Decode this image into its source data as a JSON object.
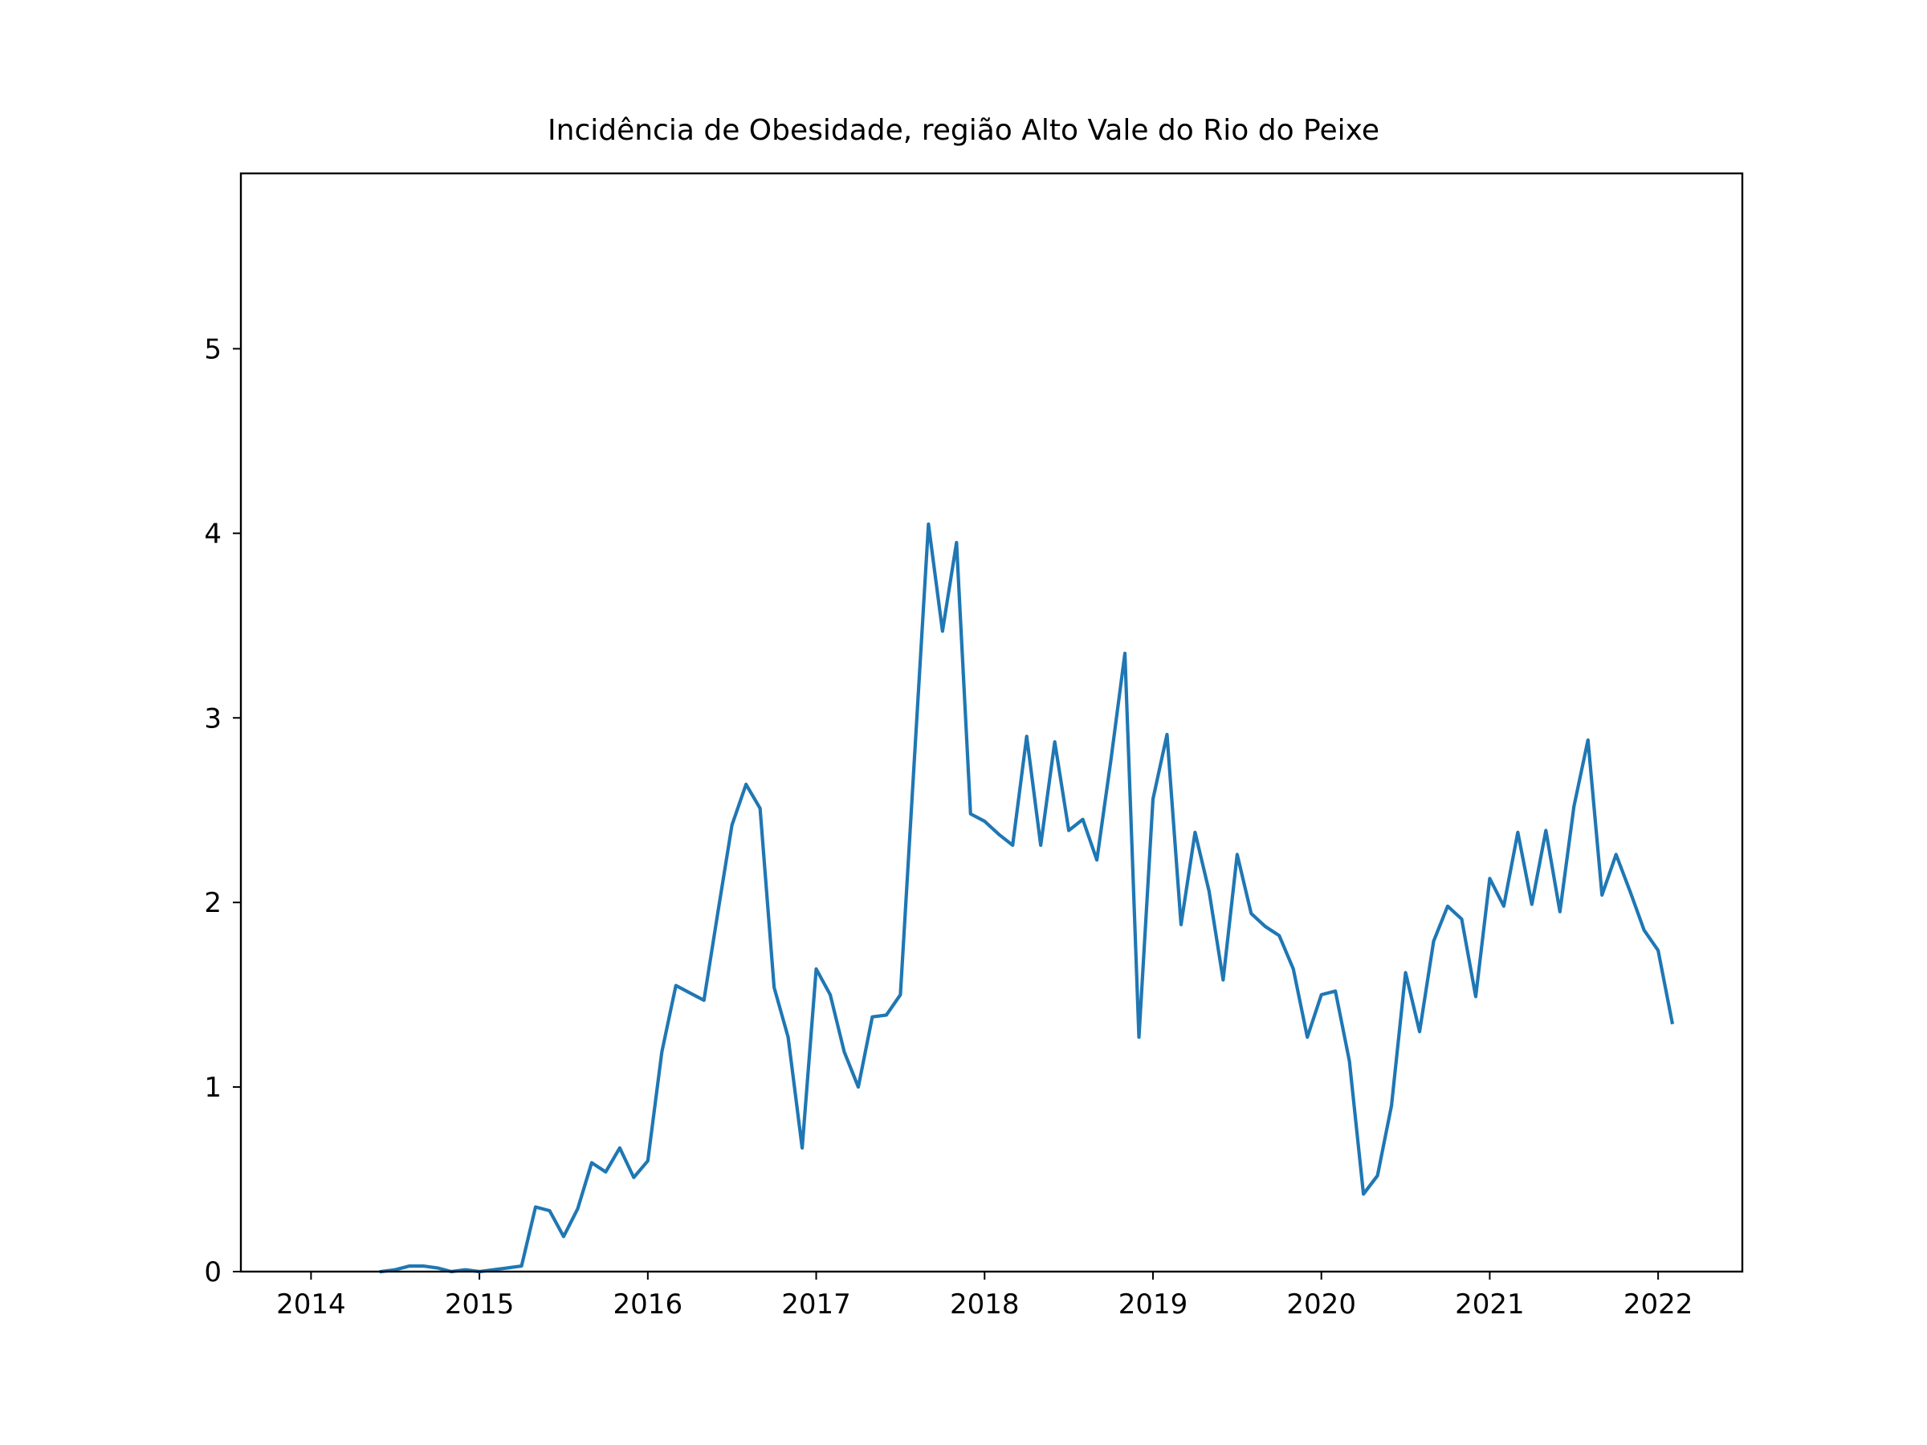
{
  "chart_data": {
    "type": "line",
    "title": "Incidência de Obesidade, região Alto Vale do Rio do Peixe",
    "xlabel": "",
    "ylabel": "",
    "x_tick_labels": [
      "2014",
      "2015",
      "2016",
      "2017",
      "2018",
      "2019",
      "2020",
      "2021",
      "2022"
    ],
    "y_tick_labels": [
      "0",
      "1",
      "2",
      "3",
      "4",
      "5"
    ],
    "xlim": [
      "2013-08",
      "2022-07"
    ],
    "ylim": [
      0,
      5.95
    ],
    "grid": false,
    "legend": false,
    "series": [
      {
        "color": "#1f77b4",
        "x": [
          "2014-06",
          "2014-07",
          "2014-08",
          "2014-09",
          "2014-10",
          "2014-11",
          "2014-12",
          "2015-01",
          "2015-02",
          "2015-03",
          "2015-04",
          "2015-05",
          "2015-06",
          "2015-07",
          "2015-08",
          "2015-09",
          "2015-10",
          "2015-11",
          "2015-12",
          "2016-01",
          "2016-02",
          "2016-03",
          "2016-04",
          "2016-05",
          "2016-06",
          "2016-07",
          "2016-08",
          "2016-09",
          "2016-10",
          "2016-11",
          "2016-12",
          "2017-01",
          "2017-02",
          "2017-03",
          "2017-04",
          "2017-05",
          "2017-06",
          "2017-07",
          "2017-08",
          "2017-09",
          "2017-10",
          "2017-11",
          "2017-12",
          "2018-01",
          "2018-02",
          "2018-03",
          "2018-04",
          "2018-05",
          "2018-06",
          "2018-07",
          "2018-08",
          "2018-09",
          "2018-10",
          "2018-11",
          "2018-12",
          "2019-01",
          "2019-02",
          "2019-03",
          "2019-04",
          "2019-05",
          "2019-06",
          "2019-07",
          "2019-08",
          "2019-09",
          "2019-10",
          "2019-11",
          "2019-12",
          "2020-01",
          "2020-02",
          "2020-03",
          "2020-04",
          "2020-05",
          "2020-06",
          "2020-07",
          "2020-08",
          "2020-09",
          "2020-10",
          "2020-11",
          "2020-12",
          "2021-01",
          "2021-02",
          "2021-03",
          "2021-04",
          "2021-05",
          "2021-06",
          "2021-07",
          "2021-08",
          "2021-09",
          "2021-10",
          "2021-11",
          "2021-12",
          "2022-01",
          "2022-02"
        ],
        "y": [
          0.0,
          0.01,
          0.03,
          0.03,
          0.02,
          0.0,
          0.01,
          0.0,
          0.01,
          0.02,
          0.03,
          0.35,
          0.33,
          0.19,
          0.34,
          0.59,
          0.54,
          0.67,
          0.51,
          0.6,
          1.19,
          1.55,
          1.51,
          1.47,
          1.95,
          2.42,
          2.64,
          2.51,
          1.54,
          1.27,
          0.67,
          1.64,
          1.5,
          1.19,
          1.0,
          1.38,
          1.39,
          1.5,
          2.78,
          4.05,
          3.47,
          3.95,
          2.48,
          2.44,
          2.37,
          2.31,
          2.9,
          2.31,
          2.87,
          2.39,
          2.45,
          2.23,
          2.77,
          3.35,
          1.27,
          2.56,
          2.91,
          1.88,
          2.38,
          2.06,
          1.58,
          2.26,
          1.94,
          1.87,
          1.82,
          1.64,
          1.27,
          1.5,
          1.52,
          1.14,
          0.42,
          0.52,
          0.9,
          1.62,
          1.3,
          1.79,
          1.98,
          1.91,
          1.49,
          2.13,
          1.98,
          2.38,
          1.99,
          2.39,
          1.95,
          2.52,
          2.88,
          2.04,
          2.26,
          2.06,
          1.85,
          1.74,
          1.35
        ]
      }
    ]
  }
}
